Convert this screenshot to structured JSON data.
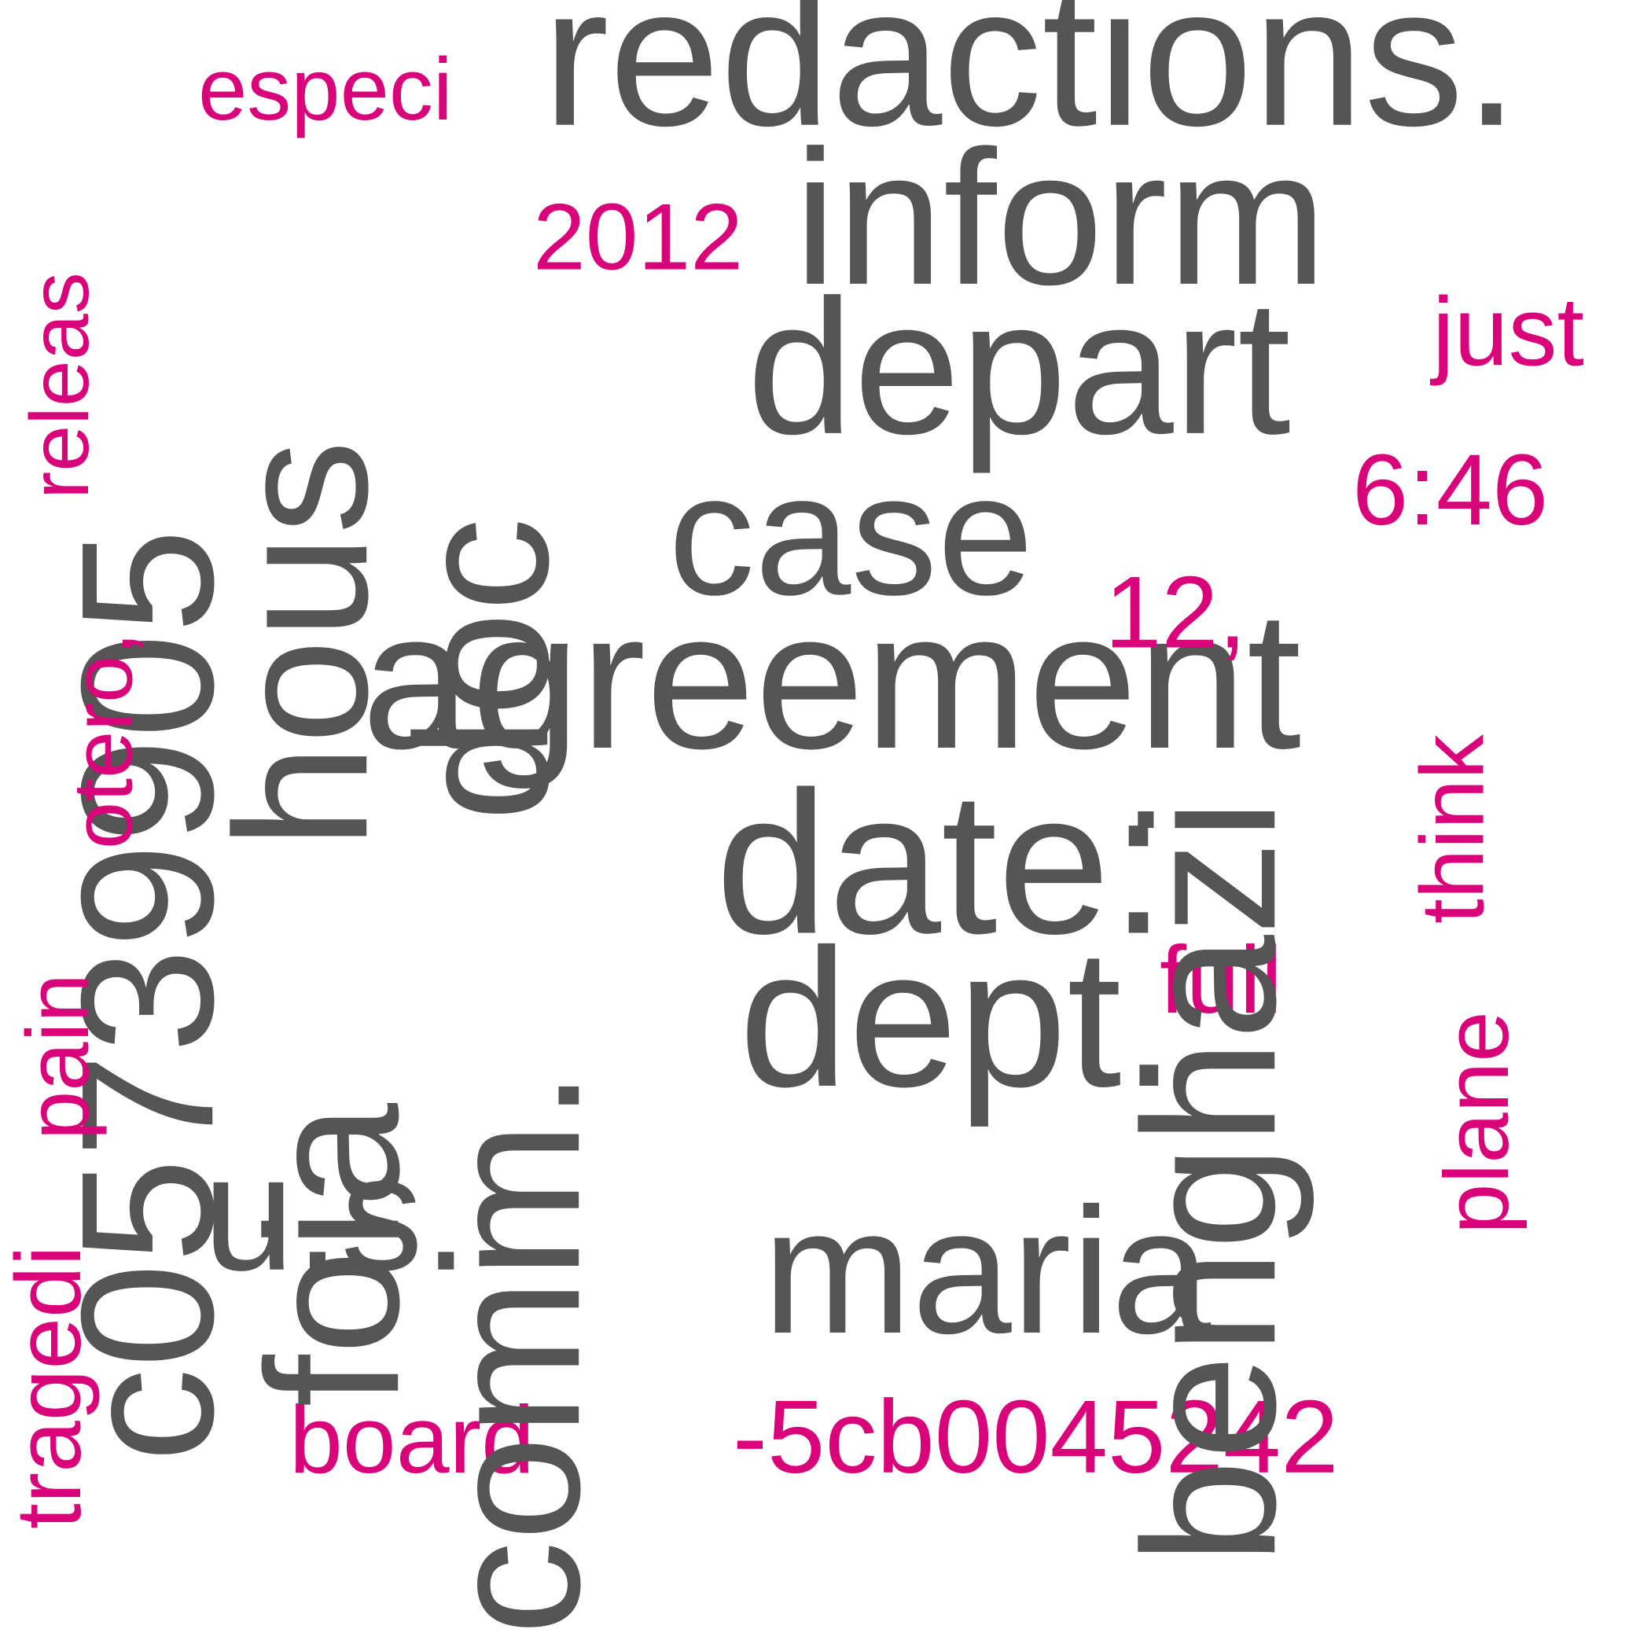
{
  "colors": {
    "background": "#ffffff",
    "primary": "#555555",
    "secondary": "#d9037a"
  },
  "words": {
    "redactions": {
      "text": "redactions.",
      "tone": "primary"
    },
    "inform": {
      "text": "inform",
      "tone": "primary"
    },
    "depart": {
      "text": "depart",
      "tone": "primary"
    },
    "case": {
      "text": "case",
      "tone": "primary"
    },
    "agreement": {
      "text": "agreement",
      "tone": "primary"
    },
    "date": {
      "text": "date:",
      "tone": "primary"
    },
    "dept": {
      "text": "dept.",
      "tone": "primary"
    },
    "maria": {
      "text": "maria",
      "tone": "primary"
    },
    "us": {
      "text": "u.s.",
      "tone": "primary"
    },
    "c05739905": {
      "text": "c05739905",
      "tone": "primary"
    },
    "hous": {
      "text": "hous",
      "tone": "primary"
    },
    "doc": {
      "text": "doc",
      "tone": "primary"
    },
    "foia": {
      "text": "foia",
      "tone": "primary"
    },
    "comm": {
      "text": "comm.",
      "tone": "primary"
    },
    "benghazi": {
      "text": "benghazi",
      "tone": "primary"
    },
    "especi": {
      "text": "especi",
      "tone": "secondary"
    },
    "y2012": {
      "text": "2012",
      "tone": "secondary"
    },
    "just": {
      "text": "just",
      "tone": "secondary"
    },
    "t646": {
      "text": "6:46",
      "tone": "secondary"
    },
    "n12": {
      "text": "12,",
      "tone": "secondary"
    },
    "full": {
      "text": "full",
      "tone": "secondary"
    },
    "board": {
      "text": "board",
      "tone": "secondary"
    },
    "code": {
      "text": "-5cb0045242",
      "tone": "secondary"
    },
    "releas": {
      "text": "releas",
      "tone": "secondary"
    },
    "otero": {
      "text": "otero,",
      "tone": "secondary"
    },
    "pain": {
      "text": "pain",
      "tone": "secondary"
    },
    "tragedi": {
      "text": "tragedi",
      "tone": "secondary"
    },
    "think": {
      "text": "think",
      "tone": "secondary"
    },
    "plane": {
      "text": "plane",
      "tone": "secondary"
    }
  }
}
